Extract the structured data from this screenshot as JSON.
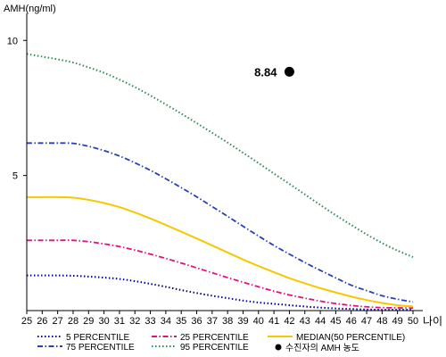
{
  "chart_data": {
    "type": "line",
    "ylabel": "AMH(ng/ml)",
    "xlabel": "나이",
    "x": [
      25,
      26,
      27,
      28,
      29,
      30,
      31,
      32,
      33,
      34,
      35,
      36,
      37,
      38,
      39,
      40,
      41,
      42,
      43,
      44,
      45,
      46,
      47,
      48,
      49,
      50
    ],
    "xlim": [
      25,
      50
    ],
    "ylim": [
      0,
      11
    ],
    "yticks": [
      5,
      10
    ],
    "grid": false,
    "legend_position": "bottom",
    "series": [
      {
        "name": "5 PERCENTILE",
        "color": "#00008b",
        "dash": "dotted",
        "values": [
          1.3,
          1.3,
          1.3,
          1.29,
          1.26,
          1.22,
          1.17,
          1.09,
          0.99,
          0.88,
          0.76,
          0.65,
          0.55,
          0.46,
          0.37,
          0.3,
          0.25,
          0.2,
          0.15,
          0.11,
          0.08,
          0.06,
          0.04,
          0.03,
          0.03,
          0.03
        ]
      },
      {
        "name": "75 PERCENTILE",
        "color": "#2c3fb5",
        "dash": "dashdot",
        "values": [
          6.2,
          6.2,
          6.2,
          6.19,
          6.08,
          5.92,
          5.72,
          5.47,
          5.19,
          4.88,
          4.55,
          4.21,
          3.85,
          3.49,
          3.12,
          2.76,
          2.41,
          2.09,
          1.78,
          1.49,
          1.21,
          0.94,
          0.74,
          0.55,
          0.42,
          0.32
        ]
      },
      {
        "name": "25 PERCENTILE",
        "color": "#e0117e",
        "dash": "dashdot",
        "values": [
          2.6,
          2.6,
          2.6,
          2.6,
          2.55,
          2.47,
          2.37,
          2.24,
          2.09,
          1.93,
          1.76,
          1.58,
          1.4,
          1.22,
          1.05,
          0.88,
          0.72,
          0.58,
          0.46,
          0.35,
          0.26,
          0.19,
          0.14,
          0.11,
          0.1,
          0.09
        ]
      },
      {
        "name": "95 PERCENTILE",
        "color": "#2e8b57",
        "dash": "dotted",
        "values": [
          9.5,
          9.4,
          9.3,
          9.18,
          9.0,
          8.8,
          8.55,
          8.27,
          7.96,
          7.63,
          7.29,
          6.94,
          6.58,
          6.22,
          5.84,
          5.46,
          5.07,
          4.69,
          4.3,
          3.91,
          3.53,
          3.17,
          2.82,
          2.5,
          2.22,
          1.98
        ]
      },
      {
        "name": "MEDIAN(50 PERCENTILE)",
        "color": "#f5c800",
        "dash": "solid",
        "values": [
          4.2,
          4.2,
          4.2,
          4.18,
          4.1,
          3.98,
          3.83,
          3.63,
          3.41,
          3.17,
          2.92,
          2.67,
          2.41,
          2.15,
          1.89,
          1.65,
          1.42,
          1.2,
          1.01,
          0.83,
          0.67,
          0.52,
          0.39,
          0.28,
          0.2,
          0.15
        ]
      }
    ],
    "marker": {
      "name": "수진자의 AMH 농도",
      "x": 42,
      "y": 8.84,
      "label": "8.84",
      "color": "#000000"
    }
  }
}
